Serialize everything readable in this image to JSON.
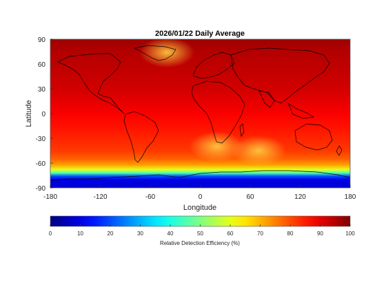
{
  "chart_data": {
    "type": "heatmap",
    "title": "2026/01/22 Daily Average",
    "xlabel": "Longitude",
    "ylabel": "Latitude",
    "xlim": [
      -180,
      180
    ],
    "ylim": [
      -90,
      90
    ],
    "xticks": [
      -180,
      -120,
      -60,
      0,
      60,
      120,
      180
    ],
    "yticks": [
      90,
      60,
      30,
      0,
      -30,
      -60,
      -90
    ],
    "colorbar": {
      "label": "Relative Detection Efficiency (%)",
      "range": [
        0,
        100
      ],
      "ticks": [
        0,
        10,
        20,
        30,
        40,
        50,
        60,
        70,
        80,
        90,
        100
      ],
      "colormap": "jet",
      "placement": "bottom"
    },
    "lat_band_values": [
      {
        "lat": 90,
        "value": 97
      },
      {
        "lat": 75,
        "value": 95
      },
      {
        "lat": 60,
        "value": 94
      },
      {
        "lat": 45,
        "value": 93
      },
      {
        "lat": 30,
        "value": 92
      },
      {
        "lat": 15,
        "value": 90
      },
      {
        "lat": 0,
        "value": 88
      },
      {
        "lat": -15,
        "value": 86
      },
      {
        "lat": -30,
        "value": 84
      },
      {
        "lat": -45,
        "value": 82
      },
      {
        "lat": -55,
        "value": 78
      },
      {
        "lat": -62,
        "value": 72
      },
      {
        "lat": -68,
        "value": 60
      },
      {
        "lat": -72,
        "value": 45
      },
      {
        "lat": -76,
        "value": 20
      },
      {
        "lat": -80,
        "value": 10
      },
      {
        "lat": -90,
        "value": 8
      }
    ],
    "hotspots": [
      {
        "name": "Greenland",
        "lon": -40,
        "lat": 74,
        "value": 78
      },
      {
        "name": "South Atlantic / Southern Africa",
        "lon": 20,
        "lat": -40,
        "value": 70
      },
      {
        "name": "Southern Indian Ocean",
        "lon": 70,
        "lat": -45,
        "value": 74
      }
    ]
  }
}
